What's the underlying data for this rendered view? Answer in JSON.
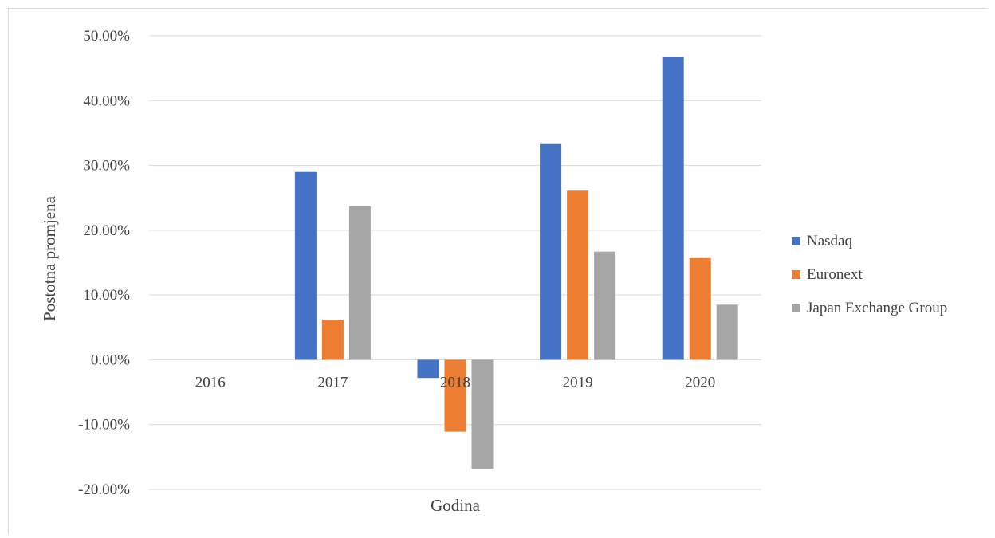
{
  "chart_data": {
    "type": "bar",
    "title": "",
    "xlabel": "Godina",
    "ylabel": "Postotna promjena",
    "categories": [
      "2016",
      "2017",
      "2018",
      "2019",
      "2020"
    ],
    "ylim": [
      -0.2,
      0.5
    ],
    "y_ticks": [
      0.5,
      0.4,
      0.3,
      0.2,
      0.1,
      0.0,
      -0.1,
      -0.2
    ],
    "y_tick_labels": [
      "50.00%",
      "40.00%",
      "30.00%",
      "20.00%",
      "10.00%",
      "0.00%",
      "-10.00%",
      "-20.00%"
    ],
    "grid": true,
    "legend_position": "right",
    "series": [
      {
        "name": "Nasdaq",
        "color": "#4472c4",
        "values": [
          0.0,
          0.29,
          -0.028,
          0.333,
          0.467
        ]
      },
      {
        "name": "Euronext",
        "color": "#ed7d31",
        "values": [
          0.0,
          0.062,
          -0.111,
          0.261,
          0.157
        ]
      },
      {
        "name": "Japan Exchange Group",
        "color": "#a5a5a5",
        "values": [
          0.0,
          0.237,
          -0.168,
          0.167,
          0.085
        ]
      }
    ]
  }
}
